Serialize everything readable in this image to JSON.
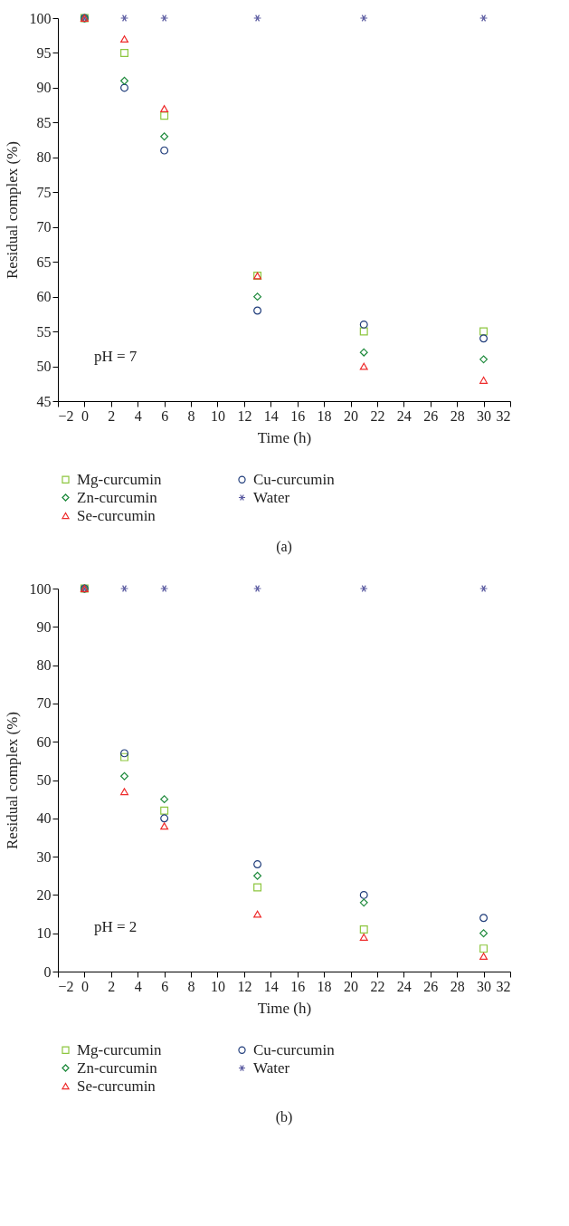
{
  "chart_data": [
    {
      "type": "scatter",
      "xlabel": "Time (h)",
      "ylabel": "Residual complex (%)",
      "x": [
        0,
        3,
        6,
        13,
        21,
        30
      ],
      "xlim": [
        -2,
        32
      ],
      "xticks": [
        -2,
        0,
        2,
        4,
        6,
        8,
        10,
        12,
        14,
        16,
        18,
        20,
        22,
        24,
        26,
        28,
        30,
        32
      ],
      "ylim": [
        45,
        100
      ],
      "yticks": [
        45,
        50,
        55,
        60,
        65,
        70,
        75,
        80,
        85,
        90,
        95,
        100
      ],
      "grid": false,
      "legend": "bottom",
      "annotations": [
        "pH = 7",
        "(a)"
      ],
      "series": [
        {
          "name": "Mg-curcumin",
          "color": "#8dc63f",
          "marker": "square",
          "values": [
            100,
            95,
            86,
            63,
            55,
            55
          ]
        },
        {
          "name": "Cu-curcumin",
          "color": "#1f3c7a",
          "marker": "circle",
          "values": [
            100,
            90,
            81,
            58,
            56,
            54
          ]
        },
        {
          "name": "Zn-curcumin",
          "color": "#1e8a3c",
          "marker": "diamond",
          "values": [
            100,
            91,
            83,
            60,
            52,
            51
          ]
        },
        {
          "name": "Water",
          "color": "#5a5aa0",
          "marker": "cross",
          "values": [
            100,
            100,
            100,
            100,
            100,
            100
          ]
        },
        {
          "name": "Se-curcumin",
          "color": "#ee2b2b",
          "marker": "triangle",
          "values": [
            100,
            97,
            87,
            63,
            50,
            48
          ]
        }
      ]
    },
    {
      "type": "scatter",
      "xlabel": "Time (h)",
      "ylabel": "Residual complex (%)",
      "x": [
        0,
        3,
        6,
        13,
        21,
        30
      ],
      "xlim": [
        -2,
        32
      ],
      "xticks": [
        -2,
        0,
        2,
        4,
        6,
        8,
        10,
        12,
        14,
        16,
        18,
        20,
        22,
        24,
        26,
        28,
        30,
        32
      ],
      "ylim": [
        0,
        100
      ],
      "yticks": [
        0,
        10,
        20,
        30,
        40,
        50,
        60,
        70,
        80,
        90,
        100
      ],
      "grid": false,
      "legend": "bottom",
      "annotations": [
        "pH = 2",
        "(b)"
      ],
      "series": [
        {
          "name": "Mg-curcumin",
          "color": "#8dc63f",
          "marker": "square",
          "values": [
            100,
            56,
            42,
            22,
            11,
            6
          ]
        },
        {
          "name": "Cu-curcumin",
          "color": "#1f3c7a",
          "marker": "circle",
          "values": [
            100,
            57,
            40,
            28,
            20,
            14
          ]
        },
        {
          "name": "Zn-curcumin",
          "color": "#1e8a3c",
          "marker": "diamond",
          "values": [
            100,
            51,
            45,
            25,
            18,
            10
          ]
        },
        {
          "name": "Water",
          "color": "#5a5aa0",
          "marker": "cross",
          "values": [
            100,
            100,
            100,
            100,
            100,
            100
          ]
        },
        {
          "name": "Se-curcumin",
          "color": "#ee2b2b",
          "marker": "triangle",
          "values": [
            100,
            47,
            38,
            15,
            9,
            4
          ]
        }
      ]
    }
  ]
}
